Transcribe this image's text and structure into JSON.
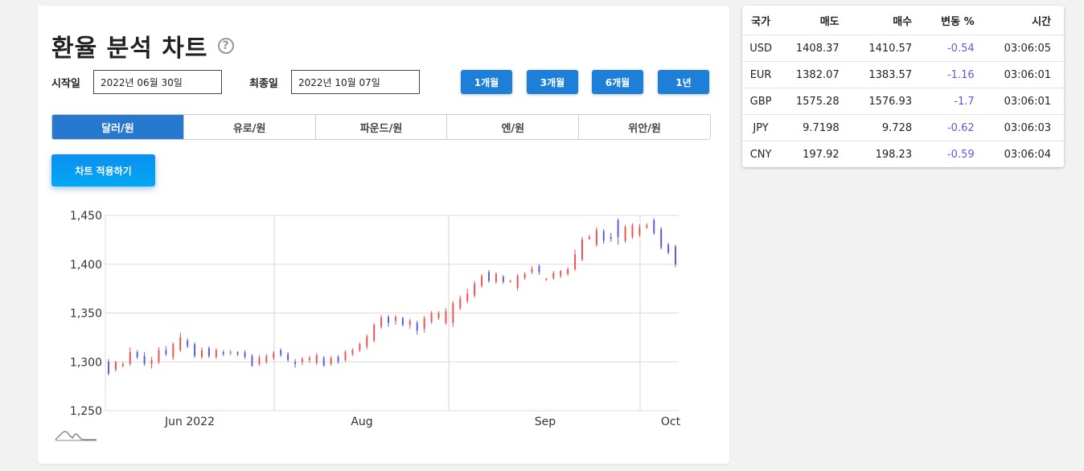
{
  "header": {
    "title": "환율 분석 차트",
    "help_icon": "?"
  },
  "dates": {
    "start_label": "시작일",
    "start_value": "2022년 06월 30일",
    "end_label": "최종일",
    "end_value": "2022년 10월 07일"
  },
  "periods": [
    "1개월",
    "3개월",
    "6개월",
    "1년"
  ],
  "tabs": [
    "달러/원",
    "유로/원",
    "파운드/원",
    "엔/원",
    "위안/원"
  ],
  "active_tab": "달러/원",
  "apply_label": "차트 적용하기",
  "colors": {
    "up": "#ef5350",
    "down": "#5c5ce0",
    "accent": "#1d7fd8"
  },
  "table": {
    "headers": [
      "국가",
      "매도",
      "매수",
      "변동 %",
      "시간"
    ],
    "rows": [
      [
        "USD",
        "1408.37",
        "1410.57",
        "-0.54",
        "03:06:05"
      ],
      [
        "EUR",
        "1382.07",
        "1383.57",
        "-1.16",
        "03:06:01"
      ],
      [
        "GBP",
        "1575.28",
        "1576.93",
        "-1.7",
        "03:06:01"
      ],
      [
        "JPY",
        "9.7198",
        "9.728",
        "-0.62",
        "03:06:03"
      ],
      [
        "CNY",
        "197.92",
        "198.23",
        "-0.59",
        "03:06:04"
      ]
    ]
  },
  "chart_data": {
    "type": "candlestick",
    "ylim": [
      1250,
      1450
    ],
    "yticks": [
      "1,250",
      "1,300",
      "1,350",
      "1,400",
      "1,450"
    ],
    "xticks": [
      "Jun 2022",
      "Aug",
      "Sep",
      "Oct"
    ],
    "candles": [
      {
        "o": 1300,
        "c": 1288,
        "h": 1303,
        "l": 1286
      },
      {
        "o": 1292,
        "c": 1300,
        "h": 1301,
        "l": 1290
      },
      {
        "o": 1296,
        "c": 1298,
        "h": 1300,
        "l": 1294
      },
      {
        "o": 1298,
        "c": 1310,
        "h": 1315,
        "l": 1296
      },
      {
        "o": 1310,
        "c": 1305,
        "h": 1312,
        "l": 1303
      },
      {
        "o": 1306,
        "c": 1298,
        "h": 1310,
        "l": 1296
      },
      {
        "o": 1298,
        "c": 1302,
        "h": 1305,
        "l": 1293
      },
      {
        "o": 1300,
        "c": 1312,
        "h": 1315,
        "l": 1298
      },
      {
        "o": 1312,
        "c": 1308,
        "h": 1316,
        "l": 1306
      },
      {
        "o": 1305,
        "c": 1318,
        "h": 1320,
        "l": 1302
      },
      {
        "o": 1312,
        "c": 1325,
        "h": 1330,
        "l": 1310
      },
      {
        "o": 1322,
        "c": 1316,
        "h": 1324,
        "l": 1314
      },
      {
        "o": 1318,
        "c": 1306,
        "h": 1320,
        "l": 1304
      },
      {
        "o": 1305,
        "c": 1312,
        "h": 1315,
        "l": 1303
      },
      {
        "o": 1314,
        "c": 1306,
        "h": 1316,
        "l": 1304
      },
      {
        "o": 1305,
        "c": 1312,
        "h": 1314,
        "l": 1303
      },
      {
        "o": 1310,
        "c": 1308,
        "h": 1312,
        "l": 1306
      },
      {
        "o": 1309,
        "c": 1310,
        "h": 1312,
        "l": 1307
      },
      {
        "o": 1310,
        "c": 1308,
        "h": 1311,
        "l": 1306
      },
      {
        "o": 1310,
        "c": 1305,
        "h": 1312,
        "l": 1303
      },
      {
        "o": 1306,
        "c": 1296,
        "h": 1308,
        "l": 1295
      },
      {
        "o": 1298,
        "c": 1304,
        "h": 1307,
        "l": 1296
      },
      {
        "o": 1300,
        "c": 1306,
        "h": 1308,
        "l": 1298
      },
      {
        "o": 1304,
        "c": 1309,
        "h": 1311,
        "l": 1302
      },
      {
        "o": 1312,
        "c": 1307,
        "h": 1314,
        "l": 1305
      },
      {
        "o": 1308,
        "c": 1302,
        "h": 1310,
        "l": 1300
      },
      {
        "o": 1300,
        "c": 1298,
        "h": 1303,
        "l": 1294
      },
      {
        "o": 1300,
        "c": 1303,
        "h": 1305,
        "l": 1297
      },
      {
        "o": 1302,
        "c": 1304,
        "h": 1306,
        "l": 1299
      },
      {
        "o": 1299,
        "c": 1307,
        "h": 1309,
        "l": 1297
      },
      {
        "o": 1304,
        "c": 1296,
        "h": 1306,
        "l": 1295
      },
      {
        "o": 1298,
        "c": 1304,
        "h": 1306,
        "l": 1296
      },
      {
        "o": 1305,
        "c": 1300,
        "h": 1307,
        "l": 1298
      },
      {
        "o": 1302,
        "c": 1310,
        "h": 1312,
        "l": 1300
      },
      {
        "o": 1308,
        "c": 1312,
        "h": 1314,
        "l": 1306
      },
      {
        "o": 1312,
        "c": 1318,
        "h": 1320,
        "l": 1310
      },
      {
        "o": 1316,
        "c": 1326,
        "h": 1328,
        "l": 1313
      },
      {
        "o": 1322,
        "c": 1338,
        "h": 1340,
        "l": 1320
      },
      {
        "o": 1336,
        "c": 1345,
        "h": 1348,
        "l": 1334
      },
      {
        "o": 1346,
        "c": 1340,
        "h": 1348,
        "l": 1336
      },
      {
        "o": 1342,
        "c": 1346,
        "h": 1348,
        "l": 1338
      },
      {
        "o": 1345,
        "c": 1338,
        "h": 1346,
        "l": 1336
      },
      {
        "o": 1338,
        "c": 1342,
        "h": 1344,
        "l": 1334
      },
      {
        "o": 1340,
        "c": 1332,
        "h": 1342,
        "l": 1328
      },
      {
        "o": 1334,
        "c": 1345,
        "h": 1347,
        "l": 1330
      },
      {
        "o": 1341,
        "c": 1350,
        "h": 1352,
        "l": 1339
      },
      {
        "o": 1345,
        "c": 1350,
        "h": 1352,
        "l": 1343
      },
      {
        "o": 1340,
        "c": 1352,
        "h": 1355,
        "l": 1338
      },
      {
        "o": 1340,
        "c": 1360,
        "h": 1362,
        "l": 1336
      },
      {
        "o": 1355,
        "c": 1365,
        "h": 1368,
        "l": 1353
      },
      {
        "o": 1362,
        "c": 1370,
        "h": 1375,
        "l": 1360
      },
      {
        "o": 1368,
        "c": 1380,
        "h": 1383,
        "l": 1366
      },
      {
        "o": 1378,
        "c": 1388,
        "h": 1390,
        "l": 1376
      },
      {
        "o": 1392,
        "c": 1383,
        "h": 1394,
        "l": 1381
      },
      {
        "o": 1382,
        "c": 1390,
        "h": 1392,
        "l": 1380
      },
      {
        "o": 1387,
        "c": 1382,
        "h": 1389,
        "l": 1380
      },
      {
        "o": 1382,
        "c": 1383,
        "h": 1384,
        "l": 1381
      },
      {
        "o": 1376,
        "c": 1388,
        "h": 1390,
        "l": 1373
      },
      {
        "o": 1386,
        "c": 1390,
        "h": 1392,
        "l": 1384
      },
      {
        "o": 1392,
        "c": 1395,
        "h": 1398,
        "l": 1390
      },
      {
        "o": 1398,
        "c": 1392,
        "h": 1400,
        "l": 1389
      },
      {
        "o": 1384,
        "c": 1385,
        "h": 1386,
        "l": 1383
      },
      {
        "o": 1386,
        "c": 1391,
        "h": 1393,
        "l": 1384
      },
      {
        "o": 1388,
        "c": 1393,
        "h": 1394,
        "l": 1386
      },
      {
        "o": 1390,
        "c": 1395,
        "h": 1397,
        "l": 1388
      },
      {
        "o": 1395,
        "c": 1410,
        "h": 1415,
        "l": 1393
      },
      {
        "o": 1405,
        "c": 1425,
        "h": 1428,
        "l": 1403
      },
      {
        "o": 1426,
        "c": 1428,
        "h": 1430,
        "l": 1425
      },
      {
        "o": 1420,
        "c": 1435,
        "h": 1438,
        "l": 1418
      },
      {
        "o": 1434,
        "c": 1424,
        "h": 1436,
        "l": 1421
      },
      {
        "o": 1428,
        "c": 1426,
        "h": 1432,
        "l": 1423
      },
      {
        "o": 1445,
        "c": 1428,
        "h": 1447,
        "l": 1420
      },
      {
        "o": 1424,
        "c": 1438,
        "h": 1440,
        "l": 1422
      },
      {
        "o": 1428,
        "c": 1440,
        "h": 1442,
        "l": 1426
      },
      {
        "o": 1430,
        "c": 1438,
        "h": 1441,
        "l": 1428
      },
      {
        "o": 1438,
        "c": 1440,
        "h": 1442,
        "l": 1436
      },
      {
        "o": 1445,
        "c": 1432,
        "h": 1447,
        "l": 1430
      },
      {
        "o": 1436,
        "c": 1417,
        "h": 1438,
        "l": 1415
      },
      {
        "o": 1420,
        "c": 1412,
        "h": 1422,
        "l": 1410
      },
      {
        "o": 1418,
        "c": 1400,
        "h": 1420,
        "l": 1397
      }
    ]
  }
}
